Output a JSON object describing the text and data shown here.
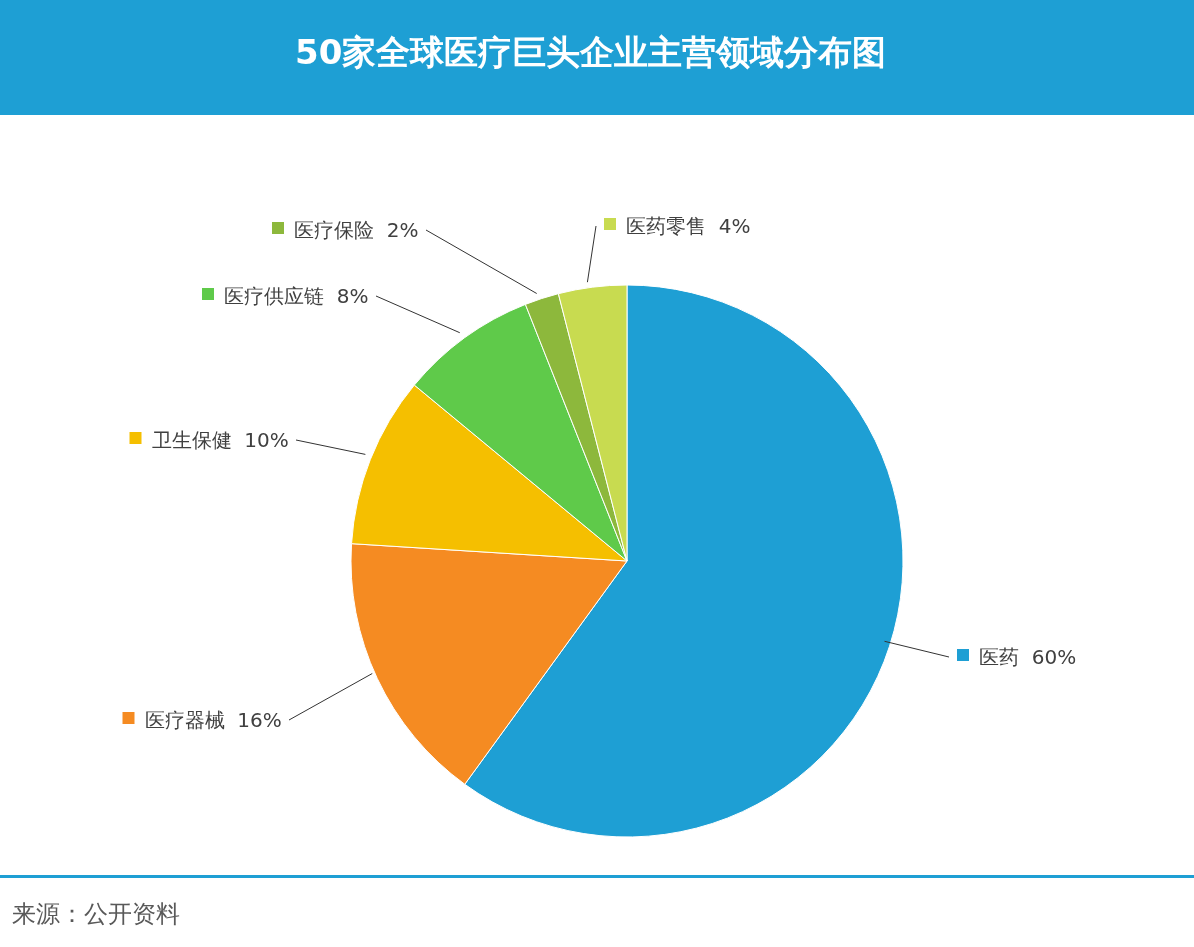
{
  "chart_data": {
    "type": "pie",
    "title": "50家全球医疗巨头企业主营领域分布图",
    "categories": [
      "医药",
      "医疗器械",
      "卫生保健",
      "医疗供应链",
      "医疗保险",
      "医药零售"
    ],
    "values": [
      60,
      16,
      10,
      8,
      2,
      4
    ],
    "value_labels": [
      "60%",
      "16%",
      "10%",
      "8%",
      "2%",
      "4%"
    ],
    "colors": [
      "#1e9fd4",
      "#f58b22",
      "#f5bf00",
      "#5fca4a",
      "#8db83c",
      "#c8db50"
    ],
    "annotations": [
      "来源：公开资料"
    ],
    "legend": "left"
  }
}
